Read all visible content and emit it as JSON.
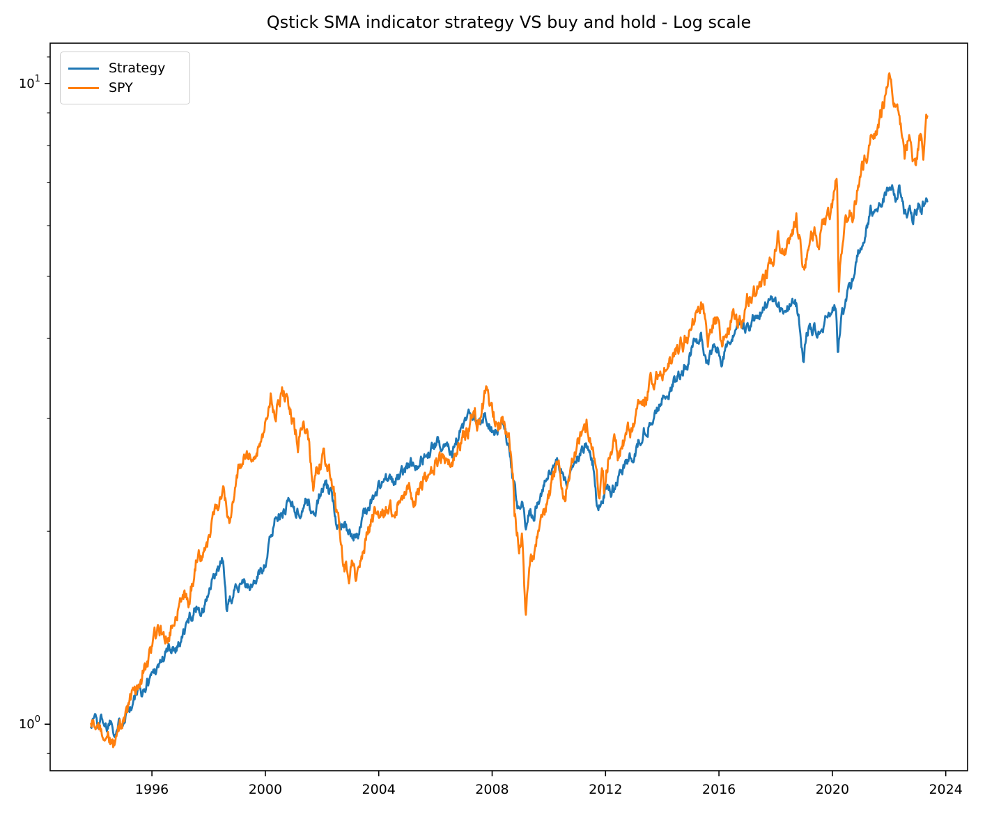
{
  "chart_data": {
    "type": "line",
    "title": "Qstick SMA indicator strategy VS buy and hold - Log scale",
    "xlabel": "",
    "ylabel": "",
    "yscale": "log",
    "grid": false,
    "xlim": [
      1992.41,
      2024.77
    ],
    "ylim": [
      0.846,
      11.56
    ],
    "xticks": [
      1996,
      2000,
      2004,
      2008,
      2012,
      2016,
      2020,
      2024
    ],
    "yticks_major": [
      {
        "value": 1,
        "base": "10",
        "exp": "0"
      },
      {
        "value": 10,
        "base": "10",
        "exp": "1"
      }
    ],
    "yticks_minor": [
      0.9,
      2,
      3,
      4,
      5,
      6,
      7,
      8,
      9,
      11
    ],
    "legend": {
      "position": "upper-left",
      "entries": [
        {
          "label": "Strategy",
          "color": "#1f77b4"
        },
        {
          "label": "SPY",
          "color": "#ff7f0e"
        }
      ]
    },
    "series": [
      {
        "name": "Strategy",
        "color": "#1f77b4",
        "points": [
          [
            1993.85,
            1.0
          ],
          [
            1994.0,
            1.04
          ],
          [
            1994.1,
            0.99
          ],
          [
            1994.25,
            1.03
          ],
          [
            1994.4,
            0.99
          ],
          [
            1994.55,
            1.02
          ],
          [
            1994.7,
            0.98
          ],
          [
            1994.85,
            1.0
          ],
          [
            1995.0,
            1.03
          ],
          [
            1995.15,
            1.07
          ],
          [
            1995.3,
            1.07
          ],
          [
            1995.5,
            1.12
          ],
          [
            1995.7,
            1.12
          ],
          [
            1995.9,
            1.18
          ],
          [
            1996.1,
            1.22
          ],
          [
            1996.35,
            1.26
          ],
          [
            1996.6,
            1.31
          ],
          [
            1996.9,
            1.33
          ],
          [
            1997.1,
            1.38
          ],
          [
            1997.35,
            1.47
          ],
          [
            1997.6,
            1.53
          ],
          [
            1997.8,
            1.5
          ],
          [
            1998.0,
            1.6
          ],
          [
            1998.25,
            1.7
          ],
          [
            1998.5,
            1.8
          ],
          [
            1998.65,
            1.5
          ],
          [
            1998.8,
            1.56
          ],
          [
            1999.0,
            1.65
          ],
          [
            1999.2,
            1.7
          ],
          [
            1999.4,
            1.62
          ],
          [
            1999.6,
            1.66
          ],
          [
            1999.8,
            1.72
          ],
          [
            2000.0,
            1.8
          ],
          [
            2000.2,
            1.95
          ],
          [
            2000.4,
            2.15
          ],
          [
            2000.6,
            2.1
          ],
          [
            2000.8,
            2.25
          ],
          [
            2001.0,
            2.2
          ],
          [
            2001.2,
            2.12
          ],
          [
            2001.45,
            2.25
          ],
          [
            2001.7,
            2.1
          ],
          [
            2001.9,
            2.25
          ],
          [
            2002.1,
            2.35
          ],
          [
            2002.3,
            2.28
          ],
          [
            2002.5,
            2.08
          ],
          [
            2002.8,
            2.08
          ],
          [
            2003.05,
            1.92
          ],
          [
            2003.3,
            2.02
          ],
          [
            2003.6,
            2.18
          ],
          [
            2003.9,
            2.3
          ],
          [
            2004.2,
            2.42
          ],
          [
            2004.5,
            2.38
          ],
          [
            2004.8,
            2.45
          ],
          [
            2005.1,
            2.55
          ],
          [
            2005.4,
            2.58
          ],
          [
            2005.7,
            2.62
          ],
          [
            2006.0,
            2.72
          ],
          [
            2006.3,
            2.76
          ],
          [
            2006.6,
            2.7
          ],
          [
            2006.9,
            2.85
          ],
          [
            2007.2,
            3.0
          ],
          [
            2007.5,
            2.92
          ],
          [
            2007.7,
            3.05
          ],
          [
            2007.9,
            2.95
          ],
          [
            2008.1,
            2.85
          ],
          [
            2008.35,
            2.95
          ],
          [
            2008.6,
            2.65
          ],
          [
            2008.75,
            2.35
          ],
          [
            2008.9,
            2.15
          ],
          [
            2009.05,
            2.22
          ],
          [
            2009.18,
            2.0
          ],
          [
            2009.3,
            2.15
          ],
          [
            2009.5,
            2.15
          ],
          [
            2009.75,
            2.32
          ],
          [
            2010.0,
            2.45
          ],
          [
            2010.3,
            2.55
          ],
          [
            2010.55,
            2.38
          ],
          [
            2010.8,
            2.5
          ],
          [
            2011.05,
            2.62
          ],
          [
            2011.3,
            2.7
          ],
          [
            2011.55,
            2.55
          ],
          [
            2011.7,
            2.18
          ],
          [
            2011.85,
            2.25
          ],
          [
            2012.0,
            2.32
          ],
          [
            2012.2,
            2.32
          ],
          [
            2012.45,
            2.42
          ],
          [
            2012.7,
            2.52
          ],
          [
            2012.95,
            2.62
          ],
          [
            2013.2,
            2.8
          ],
          [
            2013.5,
            2.95
          ],
          [
            2013.8,
            3.1
          ],
          [
            2014.1,
            3.25
          ],
          [
            2014.4,
            3.4
          ],
          [
            2014.7,
            3.55
          ],
          [
            2014.95,
            3.75
          ],
          [
            2015.2,
            3.95
          ],
          [
            2015.35,
            4.05
          ],
          [
            2015.55,
            3.7
          ],
          [
            2015.75,
            3.85
          ],
          [
            2015.95,
            3.85
          ],
          [
            2016.1,
            3.72
          ],
          [
            2016.3,
            3.95
          ],
          [
            2016.6,
            4.05
          ],
          [
            2016.9,
            4.15
          ],
          [
            2017.2,
            4.3
          ],
          [
            2017.5,
            4.4
          ],
          [
            2017.8,
            4.5
          ],
          [
            2018.05,
            4.58
          ],
          [
            2018.2,
            4.32
          ],
          [
            2018.4,
            4.48
          ],
          [
            2018.6,
            4.52
          ],
          [
            2018.75,
            4.5
          ],
          [
            2018.88,
            4.1
          ],
          [
            2018.98,
            3.65
          ],
          [
            2019.1,
            4.15
          ],
          [
            2019.4,
            4.15
          ],
          [
            2019.6,
            4.22
          ],
          [
            2019.8,
            4.3
          ],
          [
            2020.0,
            4.42
          ],
          [
            2020.12,
            4.48
          ],
          [
            2020.2,
            3.7
          ],
          [
            2020.3,
            4.3
          ],
          [
            2020.45,
            4.55
          ],
          [
            2020.6,
            4.8
          ],
          [
            2020.75,
            5.05
          ],
          [
            2020.9,
            5.35
          ],
          [
            2021.05,
            5.7
          ],
          [
            2021.2,
            6.0
          ],
          [
            2021.35,
            6.3
          ],
          [
            2021.5,
            6.5
          ],
          [
            2021.65,
            6.55
          ],
          [
            2021.8,
            6.65
          ],
          [
            2021.95,
            6.75
          ],
          [
            2022.05,
            6.9
          ],
          [
            2022.12,
            7.08
          ],
          [
            2022.2,
            6.75
          ],
          [
            2022.28,
            6.55
          ],
          [
            2022.35,
            7.0
          ],
          [
            2022.45,
            6.65
          ],
          [
            2022.55,
            6.35
          ],
          [
            2022.62,
            6.22
          ],
          [
            2022.72,
            6.5
          ],
          [
            2022.82,
            6.25
          ],
          [
            2022.95,
            6.35
          ],
          [
            2023.05,
            6.55
          ],
          [
            2023.15,
            6.45
          ],
          [
            2023.25,
            6.55
          ],
          [
            2023.35,
            6.7
          ]
        ]
      },
      {
        "name": "SPY",
        "color": "#ff7f0e",
        "points": [
          [
            1993.85,
            1.0
          ],
          [
            1994.0,
            1.0
          ],
          [
            1994.15,
            0.96
          ],
          [
            1994.35,
            0.99
          ],
          [
            1994.5,
            0.95
          ],
          [
            1994.65,
            0.93
          ],
          [
            1994.8,
            0.96
          ],
          [
            1995.0,
            1.0
          ],
          [
            1995.3,
            1.09
          ],
          [
            1995.6,
            1.17
          ],
          [
            1995.9,
            1.27
          ],
          [
            1996.2,
            1.4
          ],
          [
            1996.5,
            1.38
          ],
          [
            1996.8,
            1.48
          ],
          [
            1997.1,
            1.62
          ],
          [
            1997.3,
            1.55
          ],
          [
            1997.6,
            1.85
          ],
          [
            1997.8,
            1.78
          ],
          [
            1998.0,
            1.95
          ],
          [
            1998.25,
            2.18
          ],
          [
            1998.5,
            2.35
          ],
          [
            1998.62,
            2.22
          ],
          [
            1998.72,
            2.02
          ],
          [
            1998.9,
            2.28
          ],
          [
            1999.1,
            2.5
          ],
          [
            1999.3,
            2.65
          ],
          [
            1999.55,
            2.58
          ],
          [
            1999.75,
            2.7
          ],
          [
            2000.0,
            3.0
          ],
          [
            2000.2,
            3.28
          ],
          [
            2000.35,
            3.1
          ],
          [
            2000.6,
            3.3
          ],
          [
            2000.85,
            3.15
          ],
          [
            2001.0,
            2.95
          ],
          [
            2001.15,
            2.75
          ],
          [
            2001.35,
            2.95
          ],
          [
            2001.55,
            2.7
          ],
          [
            2001.7,
            2.35
          ],
          [
            2001.85,
            2.5
          ],
          [
            2002.05,
            2.6
          ],
          [
            2002.3,
            2.45
          ],
          [
            2002.55,
            2.1
          ],
          [
            2002.75,
            1.78
          ],
          [
            2002.95,
            1.72
          ],
          [
            2003.1,
            1.8
          ],
          [
            2003.22,
            1.68
          ],
          [
            2003.5,
            1.92
          ],
          [
            2003.8,
            2.08
          ],
          [
            2004.1,
            2.18
          ],
          [
            2004.4,
            2.15
          ],
          [
            2004.7,
            2.22
          ],
          [
            2005.0,
            2.3
          ],
          [
            2005.3,
            2.28
          ],
          [
            2005.7,
            2.42
          ],
          [
            2006.0,
            2.52
          ],
          [
            2006.3,
            2.62
          ],
          [
            2006.5,
            2.55
          ],
          [
            2006.8,
            2.7
          ],
          [
            2007.1,
            2.85
          ],
          [
            2007.35,
            3.05
          ],
          [
            2007.55,
            2.95
          ],
          [
            2007.8,
            3.35
          ],
          [
            2007.95,
            3.15
          ],
          [
            2008.2,
            2.9
          ],
          [
            2008.4,
            3.0
          ],
          [
            2008.6,
            2.75
          ],
          [
            2008.72,
            2.55
          ],
          [
            2008.78,
            2.15
          ],
          [
            2008.95,
            1.9
          ],
          [
            2009.05,
            1.95
          ],
          [
            2009.18,
            1.48
          ],
          [
            2009.35,
            1.75
          ],
          [
            2009.6,
            2.0
          ],
          [
            2009.9,
            2.2
          ],
          [
            2010.1,
            2.35
          ],
          [
            2010.32,
            2.6
          ],
          [
            2010.55,
            2.3
          ],
          [
            2010.8,
            2.5
          ],
          [
            2011.0,
            2.7
          ],
          [
            2011.15,
            2.8
          ],
          [
            2011.35,
            2.9
          ],
          [
            2011.55,
            2.75
          ],
          [
            2011.65,
            2.45
          ],
          [
            2011.78,
            2.2
          ],
          [
            2011.88,
            2.45
          ],
          [
            2011.95,
            2.3
          ],
          [
            2012.1,
            2.6
          ],
          [
            2012.3,
            2.75
          ],
          [
            2012.45,
            2.62
          ],
          [
            2012.7,
            2.78
          ],
          [
            2012.95,
            2.85
          ],
          [
            2013.2,
            3.1
          ],
          [
            2013.5,
            3.3
          ],
          [
            2013.8,
            3.45
          ],
          [
            2014.1,
            3.6
          ],
          [
            2014.4,
            3.75
          ],
          [
            2014.7,
            3.9
          ],
          [
            2014.95,
            4.05
          ],
          [
            2015.15,
            4.3
          ],
          [
            2015.35,
            4.5
          ],
          [
            2015.5,
            4.4
          ],
          [
            2015.62,
            4.0
          ],
          [
            2015.8,
            4.3
          ],
          [
            2015.95,
            4.25
          ],
          [
            2016.1,
            3.88
          ],
          [
            2016.3,
            4.15
          ],
          [
            2016.55,
            4.35
          ],
          [
            2016.8,
            4.3
          ],
          [
            2017.0,
            4.55
          ],
          [
            2017.3,
            4.75
          ],
          [
            2017.6,
            4.95
          ],
          [
            2017.9,
            5.3
          ],
          [
            2018.08,
            5.85
          ],
          [
            2018.2,
            5.4
          ],
          [
            2018.35,
            5.55
          ],
          [
            2018.55,
            5.75
          ],
          [
            2018.72,
            6.2
          ],
          [
            2018.85,
            5.7
          ],
          [
            2018.98,
            5.0
          ],
          [
            2019.15,
            5.55
          ],
          [
            2019.35,
            5.8
          ],
          [
            2019.5,
            5.7
          ],
          [
            2019.7,
            6.0
          ],
          [
            2019.95,
            6.4
          ],
          [
            2020.1,
            6.9
          ],
          [
            2020.16,
            7.25
          ],
          [
            2020.23,
            4.78
          ],
          [
            2020.32,
            5.5
          ],
          [
            2020.45,
            5.9
          ],
          [
            2020.6,
            6.35
          ],
          [
            2020.7,
            6.2
          ],
          [
            2020.85,
            6.7
          ],
          [
            2021.0,
            7.3
          ],
          [
            2021.2,
            7.7
          ],
          [
            2021.4,
            8.2
          ],
          [
            2021.6,
            8.6
          ],
          [
            2021.8,
            9.2
          ],
          [
            2021.95,
            10.05
          ],
          [
            2022.02,
            10.3
          ],
          [
            2022.1,
            9.6
          ],
          [
            2022.2,
            9.1
          ],
          [
            2022.3,
            9.4
          ],
          [
            2022.42,
            8.4
          ],
          [
            2022.55,
            7.7
          ],
          [
            2022.62,
            8.0
          ],
          [
            2022.7,
            8.45
          ],
          [
            2022.82,
            7.8
          ],
          [
            2022.95,
            7.4
          ],
          [
            2023.05,
            8.0
          ],
          [
            2023.15,
            8.3
          ],
          [
            2023.22,
            7.9
          ],
          [
            2023.3,
            8.6
          ],
          [
            2023.35,
            8.8
          ]
        ]
      }
    ]
  }
}
